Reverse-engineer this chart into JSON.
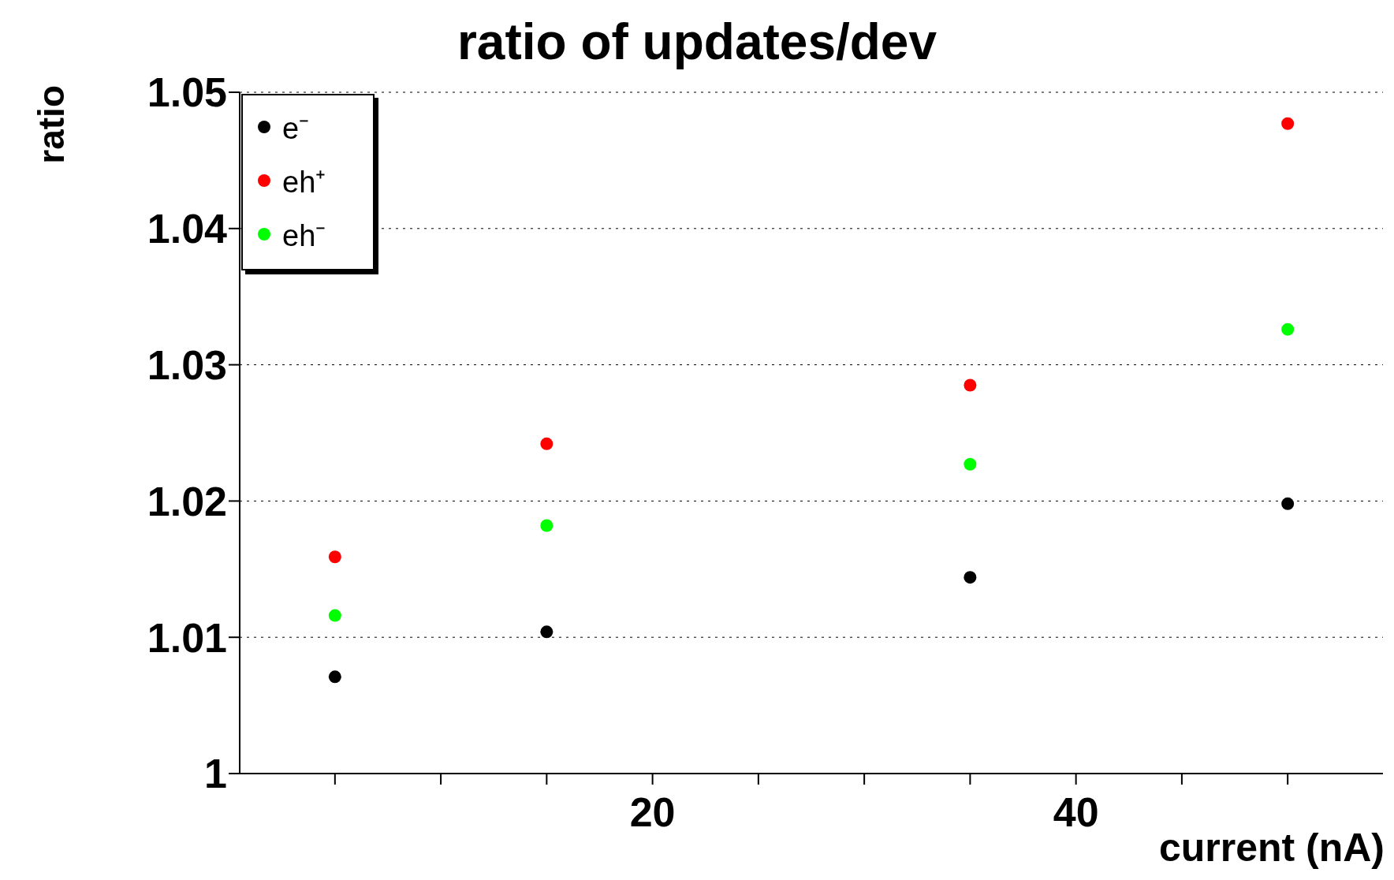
{
  "chart_data": {
    "type": "scatter",
    "title": "ratio of updates/dev",
    "xlabel": "current (nA)",
    "ylabel": "ratio",
    "x": [
      5,
      15,
      35,
      50
    ],
    "series": [
      {
        "name": "e⁻",
        "color": "#000000",
        "values": [
          1.0071,
          1.0104,
          1.0144,
          1.0198
        ]
      },
      {
        "name": "eh⁺",
        "color": "#ff0000",
        "values": [
          1.0159,
          1.0242,
          1.0285,
          1.0477
        ]
      },
      {
        "name": "eh⁻",
        "color": "#00ff00",
        "values": [
          1.0116,
          1.0182,
          1.0227,
          1.0326
        ]
      }
    ],
    "xlim": [
      0.5,
      54.5
    ],
    "xticks": [
      {
        "value": 5,
        "label": null
      },
      {
        "value": 10,
        "label": null
      },
      {
        "value": 15,
        "label": null
      },
      20,
      {
        "value": 25,
        "label": null
      },
      {
        "value": 30,
        "label": null
      },
      {
        "value": 35,
        "label": null
      },
      40,
      {
        "value": 45,
        "label": null
      },
      {
        "value": 50,
        "label": null
      }
    ],
    "ylim": [
      1,
      1.05
    ],
    "yticks": [
      1,
      1.01,
      1.02,
      1.03,
      1.04,
      1.05
    ],
    "grid": "y",
    "legend": "top left",
    "marker": "circle"
  }
}
